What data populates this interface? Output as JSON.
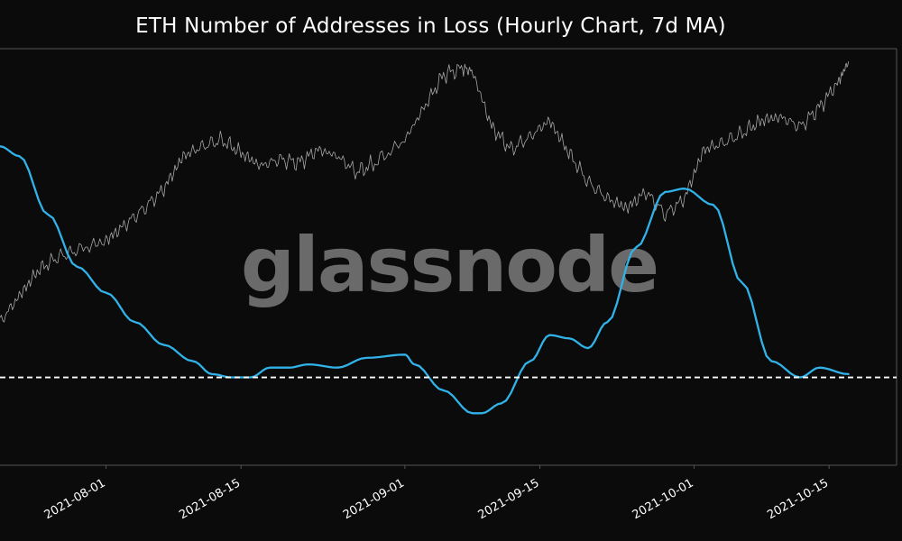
{
  "chart_data": {
    "type": "line",
    "title": "ETH Number of Addresses in Loss (Hourly Chart, 7d MA)",
    "watermark": "glassnode",
    "x_ticks": [
      "2021-08-01",
      "2021-08-15",
      "2021-09-01",
      "2021-09-15",
      "2021-10-01",
      "2021-10-15"
    ],
    "x_range": [
      "2021-07-21",
      "2021-10-22"
    ],
    "reference_line_style": "dashed",
    "grid": false,
    "legend": "none",
    "colors": {
      "background": "#0b0b0b",
      "price": "#a6a6a6",
      "addresses_in_loss": "#31b2e8",
      "reference": "#ffffff",
      "frame": "#555555",
      "watermark": "#6a6a6a"
    },
    "series": [
      {
        "key": "price",
        "style": "thin-gray",
        "noise": 0.012,
        "x": [
          "2021-07-21",
          "2021-07-23",
          "2021-07-25",
          "2021-07-27",
          "2021-07-29",
          "2021-08-01",
          "2021-08-03",
          "2021-08-05",
          "2021-08-07",
          "2021-08-09",
          "2021-08-11",
          "2021-08-13",
          "2021-08-15",
          "2021-08-17",
          "2021-08-19",
          "2021-08-21",
          "2021-08-23",
          "2021-08-25",
          "2021-08-27",
          "2021-08-29",
          "2021-09-01",
          "2021-09-03",
          "2021-09-05",
          "2021-09-07",
          "2021-09-08",
          "2021-09-10",
          "2021-09-12",
          "2021-09-14",
          "2021-09-16",
          "2021-09-18",
          "2021-09-20",
          "2021-09-22",
          "2021-09-24",
          "2021-09-26",
          "2021-09-28",
          "2021-09-30",
          "2021-10-02",
          "2021-10-04",
          "2021-10-06",
          "2021-10-08",
          "2021-10-10",
          "2021-10-12",
          "2021-10-14",
          "2021-10-16",
          "2021-10-17"
        ],
        "y": [
          0.22,
          0.3,
          0.38,
          0.42,
          0.44,
          0.47,
          0.52,
          0.57,
          0.63,
          0.73,
          0.76,
          0.78,
          0.74,
          0.7,
          0.72,
          0.71,
          0.75,
          0.73,
          0.68,
          0.71,
          0.78,
          0.88,
          0.98,
          1.0,
          0.99,
          0.82,
          0.75,
          0.79,
          0.84,
          0.74,
          0.65,
          0.6,
          0.57,
          0.62,
          0.55,
          0.6,
          0.75,
          0.77,
          0.8,
          0.84,
          0.85,
          0.82,
          0.88,
          0.96,
          1.02
        ]
      },
      {
        "key": "addresses_in_loss",
        "style": "thick-blue",
        "noise": 0,
        "x": [
          "2021-07-21",
          "2021-07-23",
          "2021-07-26",
          "2021-07-29",
          "2021-08-01",
          "2021-08-04",
          "2021-08-07",
          "2021-08-10",
          "2021-08-12",
          "2021-08-14",
          "2021-08-16",
          "2021-08-18",
          "2021-08-20",
          "2021-08-22",
          "2021-08-25",
          "2021-08-28",
          "2021-09-01",
          "2021-09-02",
          "2021-09-05",
          "2021-09-08",
          "2021-09-09",
          "2021-09-11",
          "2021-09-14",
          "2021-09-16",
          "2021-09-18",
          "2021-09-20",
          "2021-09-22",
          "2021-09-25",
          "2021-09-28",
          "2021-09-30",
          "2021-10-03",
          "2021-10-06",
          "2021-10-09",
          "2021-10-12",
          "2021-10-14",
          "2021-10-17"
        ],
        "y": [
          0.76,
          0.73,
          0.55,
          0.39,
          0.31,
          0.22,
          0.15,
          0.1,
          0.06,
          0.05,
          0.05,
          0.08,
          0.08,
          0.09,
          0.08,
          0.11,
          0.12,
          0.09,
          0.01,
          -0.06,
          -0.06,
          -0.03,
          0.1,
          0.18,
          0.17,
          0.14,
          0.22,
          0.45,
          0.62,
          0.63,
          0.58,
          0.34,
          0.1,
          0.05,
          0.08,
          0.06
        ]
      }
    ]
  }
}
